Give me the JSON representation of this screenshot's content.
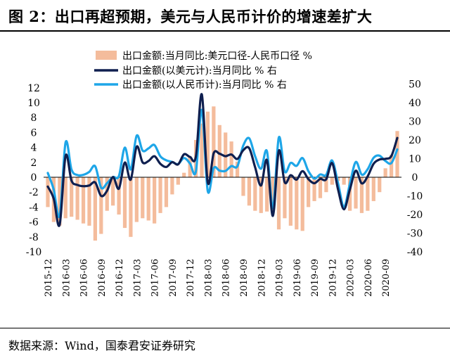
{
  "header": {
    "title": "图 2：出口再超预期，美元与人民币计价的增速差扩大"
  },
  "footer": {
    "source": "数据来源：Wind，国泰君安证券研究"
  },
  "chart_data": {
    "type": "bar+line",
    "title": "",
    "x": [
      "2015-12",
      "2016-01",
      "2016-02",
      "2016-03",
      "2016-04",
      "2016-05",
      "2016-06",
      "2016-07",
      "2016-08",
      "2016-09",
      "2016-10",
      "2016-11",
      "2016-12",
      "2017-01",
      "2017-02",
      "2017-03",
      "2017-04",
      "2017-05",
      "2017-06",
      "2017-07",
      "2017-08",
      "2017-09",
      "2017-10",
      "2017-11",
      "2017-12",
      "2018-01",
      "2018-02",
      "2018-03",
      "2018-04",
      "2018-05",
      "2018-06",
      "2018-07",
      "2018-08",
      "2018-09",
      "2018-10",
      "2018-11",
      "2018-12",
      "2019-01",
      "2019-02",
      "2019-03",
      "2019-04",
      "2019-05",
      "2019-06",
      "2019-07",
      "2019-08",
      "2019-09",
      "2019-10",
      "2019-11",
      "2019-12",
      "2020-01",
      "2020-02",
      "2020-03",
      "2020-04",
      "2020-05",
      "2020-06",
      "2020-07",
      "2020-08",
      "2020-09",
      "2020-10",
      "2020-11"
    ],
    "x_tick_labels": [
      "2015-12",
      "2016-03",
      "2016-06",
      "2016-09",
      "2016-12",
      "2017-03",
      "2017-06",
      "2017-09",
      "2017-12",
      "2018-03",
      "2018-06",
      "2018-09",
      "2018-12",
      "2019-03",
      "2019-06",
      "2019-09",
      "2019-12",
      "2020-03",
      "2020-06",
      "2020-09"
    ],
    "left_axis": {
      "ylim": [
        -10,
        12
      ],
      "ticks": [
        12,
        10,
        8,
        6,
        4,
        2,
        0,
        -2,
        -4,
        -6,
        -8,
        -10
      ]
    },
    "right_axis": {
      "ylim": [
        -40,
        50
      ],
      "ticks": [
        50,
        40,
        30,
        20,
        10,
        0,
        -10,
        -20,
        -30,
        -40
      ]
    },
    "legend_position": "top",
    "grid": false,
    "series": [
      {
        "name": "出口金额:当月同比:美元口径-人民币口径 %",
        "type": "bar",
        "axis": "left",
        "color": "#f4bc9c",
        "values": [
          -4.0,
          -6.0,
          -6.5,
          -5.5,
          -5.3,
          -5.7,
          -6.2,
          -6.5,
          -8.5,
          -7.6,
          -4.5,
          -3.8,
          -5.0,
          -6.8,
          -8.0,
          -6.0,
          -5.5,
          -5.8,
          -6.2,
          -4.8,
          -4.0,
          -2.3,
          -1.0,
          0.6,
          2.8,
          5.0,
          7.2,
          8.8,
          9.5,
          7.0,
          6.0,
          4.8,
          2.1,
          -2.5,
          -3.8,
          -4.5,
          -4.8,
          -4.6,
          -4.0,
          -7.0,
          -5.5,
          -6.5,
          -7.0,
          -7.2,
          -4.0,
          -3.2,
          -2.8,
          -2.0,
          -1.0,
          -0.5,
          -1.0,
          -4.5,
          -4.2,
          -4.8,
          -4.5,
          -3.2,
          -2.0,
          1.2,
          3.0,
          6.2
        ]
      },
      {
        "name": "出口金额(以美元计):当月同比 % 右",
        "type": "line",
        "axis": "right",
        "color": "#0f1f4f",
        "values": [
          -5.0,
          -11.5,
          -25.5,
          11.5,
          -1.8,
          -4.1,
          -4.8,
          -4.4,
          -2.8,
          -10.0,
          -7.3,
          0.1,
          -6.1,
          7.9,
          -1.3,
          16.4,
          8.0,
          8.7,
          11.3,
          7.2,
          5.5,
          8.1,
          6.9,
          12.3,
          10.9,
          11.1,
          44.5,
          -2.7,
          12.9,
          12.6,
          11.3,
          12.2,
          9.8,
          14.5,
          15.6,
          5.4,
          -4.4,
          9.1,
          -20.7,
          14.2,
          -2.7,
          1.1,
          -1.3,
          3.3,
          -1.0,
          -3.2,
          -0.9,
          -1.1,
          7.6,
          -6.6,
          -17.2,
          -6.6,
          3.5,
          -3.3,
          0.5,
          7.2,
          9.5,
          9.9,
          11.4,
          21.1
        ]
      },
      {
        "name": "出口金额(以人民币计):当月同比 % 右",
        "type": "line",
        "axis": "right",
        "color": "#1ea6e8",
        "values": [
          2.3,
          -6.6,
          -20.6,
          18.7,
          4.1,
          1.2,
          1.3,
          2.9,
          5.9,
          -5.6,
          -3.2,
          0.1,
          0.6,
          15.9,
          4.2,
          22.3,
          14.3,
          15.5,
          17.3,
          11.2,
          9.1,
          8.2,
          7.1,
          10.3,
          7.4,
          3.1,
          36.1,
          -7.3,
          4.9,
          3.5,
          3.4,
          6.0,
          5.9,
          17.0,
          20.9,
          11.3,
          4.6,
          13.9,
          -16.6,
          21.3,
          3.1,
          7.7,
          6.1,
          10.3,
          3.3,
          -0.7,
          1.5,
          1.3,
          9.0,
          -3.2,
          -15.9,
          -3.5,
          8.2,
          1.4,
          4.3,
          10.4,
          11.6,
          8.7,
          7.6,
          14.9
        ]
      }
    ]
  }
}
